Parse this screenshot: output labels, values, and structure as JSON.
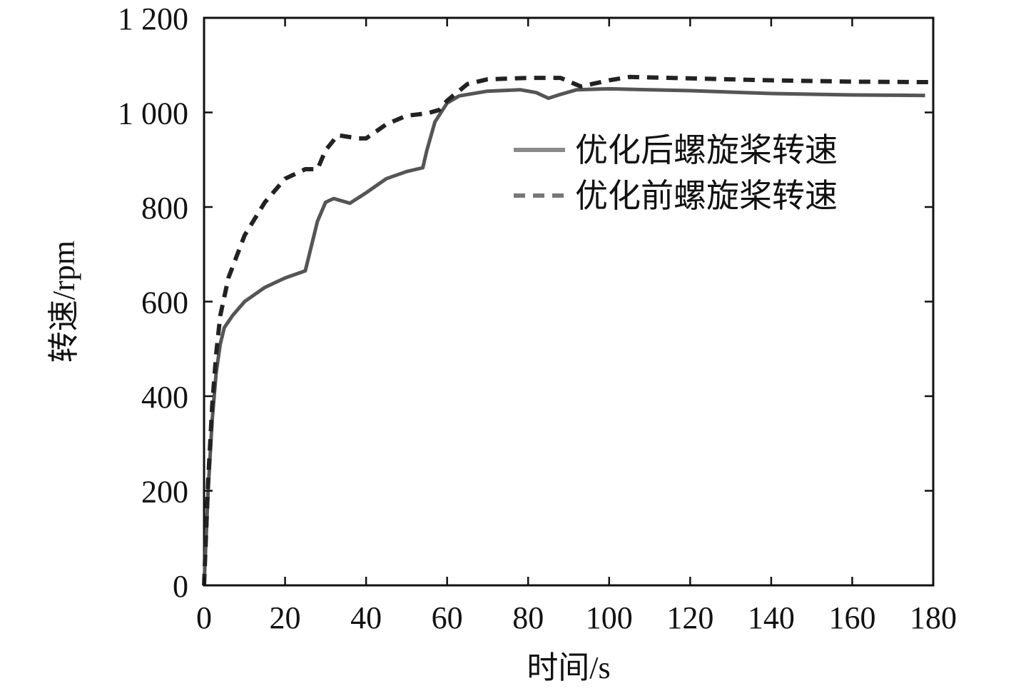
{
  "chart_data": {
    "type": "line",
    "xlabel": "时间/s",
    "ylabel": "转速/rpm",
    "xlim": [
      0,
      180
    ],
    "ylim": [
      0,
      1200
    ],
    "x_ticks": [
      "0",
      "20",
      "40",
      "60",
      "80",
      "100",
      "120",
      "140",
      "160",
      "180"
    ],
    "y_ticks": [
      "0",
      "200",
      "400",
      "600",
      "800",
      "1 000",
      "1 200"
    ],
    "x_tick_values": [
      0,
      20,
      40,
      60,
      80,
      100,
      120,
      140,
      160,
      180
    ],
    "y_tick_values": [
      0,
      200,
      400,
      600,
      800,
      1000,
      1200
    ],
    "grid": false,
    "legend_position": "upper-right",
    "series": [
      {
        "name": "优化后螺旋桨转速",
        "style": "solid",
        "color": "#555555",
        "points": [
          [
            0,
            0
          ],
          [
            1,
            200
          ],
          [
            2,
            350
          ],
          [
            3,
            450
          ],
          [
            4,
            510
          ],
          [
            5,
            545
          ],
          [
            7,
            570
          ],
          [
            10,
            600
          ],
          [
            15,
            630
          ],
          [
            20,
            650
          ],
          [
            25,
            665
          ],
          [
            26,
            700
          ],
          [
            28,
            770
          ],
          [
            30,
            810
          ],
          [
            32,
            818
          ],
          [
            36,
            808
          ],
          [
            40,
            830
          ],
          [
            45,
            860
          ],
          [
            50,
            875
          ],
          [
            54,
            883
          ],
          [
            55,
            920
          ],
          [
            57,
            980
          ],
          [
            60,
            1020
          ],
          [
            63,
            1035
          ],
          [
            70,
            1045
          ],
          [
            78,
            1048
          ],
          [
            82,
            1042
          ],
          [
            85,
            1030
          ],
          [
            88,
            1038
          ],
          [
            92,
            1048
          ],
          [
            100,
            1050
          ],
          [
            120,
            1046
          ],
          [
            140,
            1040
          ],
          [
            160,
            1037
          ],
          [
            178,
            1036
          ]
        ]
      },
      {
        "name": "优化前螺旋桨转速",
        "style": "dashed",
        "color": "#222222",
        "points": [
          [
            0,
            0
          ],
          [
            1,
            220
          ],
          [
            2,
            380
          ],
          [
            3,
            490
          ],
          [
            4,
            570
          ],
          [
            6,
            650
          ],
          [
            10,
            740
          ],
          [
            15,
            810
          ],
          [
            20,
            860
          ],
          [
            25,
            880
          ],
          [
            28,
            880
          ],
          [
            30,
            920
          ],
          [
            33,
            952
          ],
          [
            38,
            945
          ],
          [
            40,
            945
          ],
          [
            45,
            975
          ],
          [
            50,
            993
          ],
          [
            55,
            998
          ],
          [
            58,
            1005
          ],
          [
            60,
            1025
          ],
          [
            65,
            1060
          ],
          [
            70,
            1070
          ],
          [
            80,
            1073
          ],
          [
            88,
            1073
          ],
          [
            93,
            1055
          ],
          [
            100,
            1068
          ],
          [
            105,
            1075
          ],
          [
            120,
            1072
          ],
          [
            140,
            1068
          ],
          [
            160,
            1065
          ],
          [
            180,
            1064
          ]
        ]
      }
    ]
  }
}
